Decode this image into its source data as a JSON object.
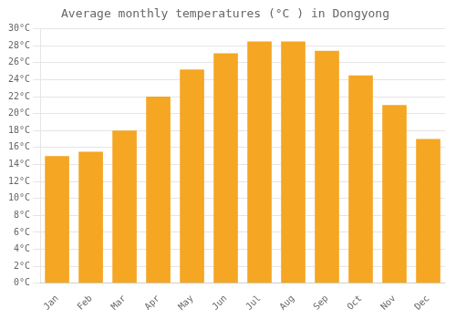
{
  "chart_data": {
    "type": "bar",
    "title": "Average monthly temperatures (°C ) in Dongyong",
    "categories": [
      "Jan",
      "Feb",
      "Mar",
      "Apr",
      "May",
      "Jun",
      "Jul",
      "Aug",
      "Sep",
      "Oct",
      "Nov",
      "Dec"
    ],
    "values": [
      15.0,
      15.5,
      18.0,
      22.0,
      25.2,
      27.1,
      28.5,
      28.5,
      27.4,
      24.5,
      21.0,
      17.0
    ],
    "color": "#F5A623",
    "ylim": [
      0,
      30
    ],
    "yticks": [
      {
        "value": 0,
        "label": "0°C"
      },
      {
        "value": 2,
        "label": "2°C"
      },
      {
        "value": 4,
        "label": "4°C"
      },
      {
        "value": 6,
        "label": "6°C"
      },
      {
        "value": 8,
        "label": "8°C"
      },
      {
        "value": 10,
        "label": "10°C"
      },
      {
        "value": 12,
        "label": "12°C"
      },
      {
        "value": 14,
        "label": "14°C"
      },
      {
        "value": 16,
        "label": "16°C"
      },
      {
        "value": 18,
        "label": "18°C"
      },
      {
        "value": 20,
        "label": "20°C"
      },
      {
        "value": 22,
        "label": "22°C"
      },
      {
        "value": 24,
        "label": "24°C"
      },
      {
        "value": 26,
        "label": "26°C"
      },
      {
        "value": 28,
        "label": "28°C"
      },
      {
        "value": 30,
        "label": "30°C"
      }
    ],
    "grid": true
  }
}
